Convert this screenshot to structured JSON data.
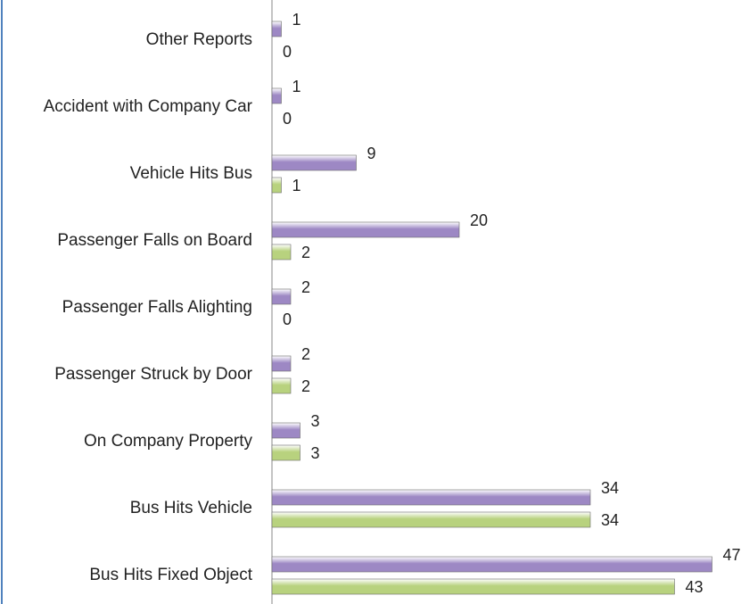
{
  "chart_data": {
    "type": "bar",
    "orientation": "horizontal",
    "categories": [
      "Other Reports",
      "Accident with Company Car",
      "Vehicle Hits Bus",
      "Passenger Falls on Board",
      "Passenger Falls Alighting",
      "Passenger Struck by Door",
      "On Company Property",
      "Bus Hits Vehicle",
      "Bus Hits Fixed Object"
    ],
    "series": [
      {
        "color": "#9d88c4",
        "values": [
          1,
          1,
          9,
          20,
          2,
          2,
          3,
          34,
          47
        ]
      },
      {
        "color": "#b8d27e",
        "values": [
          0,
          0,
          1,
          2,
          0,
          2,
          3,
          34,
          43
        ]
      }
    ]
  }
}
